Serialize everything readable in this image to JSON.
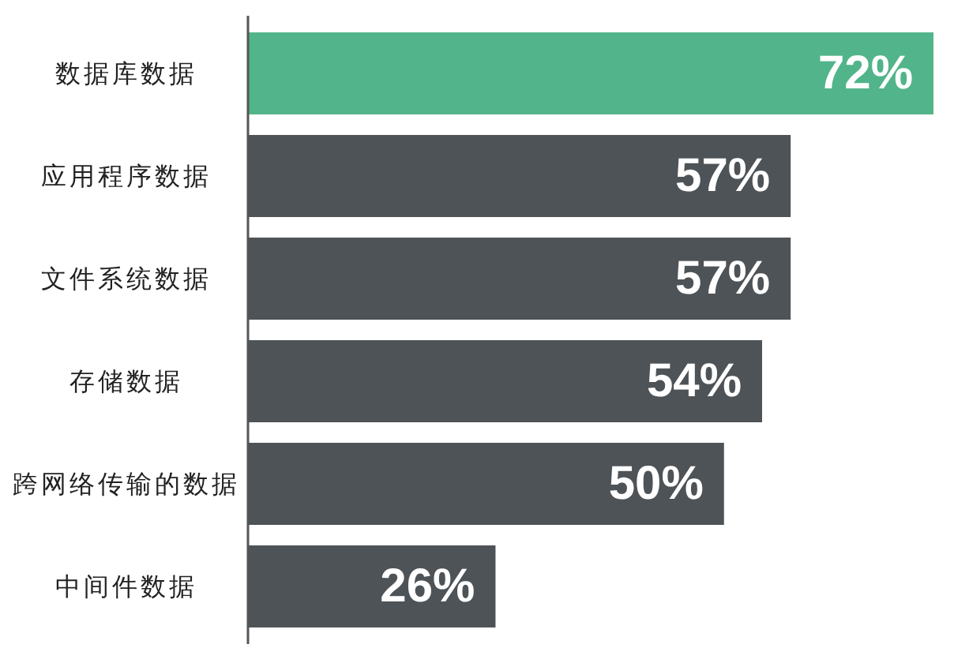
{
  "chart_data": {
    "type": "bar",
    "orientation": "horizontal",
    "categories": [
      "数据库数据",
      "应用程序数据",
      "文件系统数据",
      "存储数据",
      "跨网络传输的数据",
      "中间件数据"
    ],
    "values": [
      72,
      57,
      57,
      54,
      50,
      26
    ],
    "colors": [
      "#52b48a",
      "#4d5357",
      "#4d5357",
      "#4d5357",
      "#4d5357",
      "#4d5357"
    ],
    "value_labels": [
      "72%",
      "57%",
      "57%",
      "54%",
      "50%",
      "26%"
    ]
  }
}
